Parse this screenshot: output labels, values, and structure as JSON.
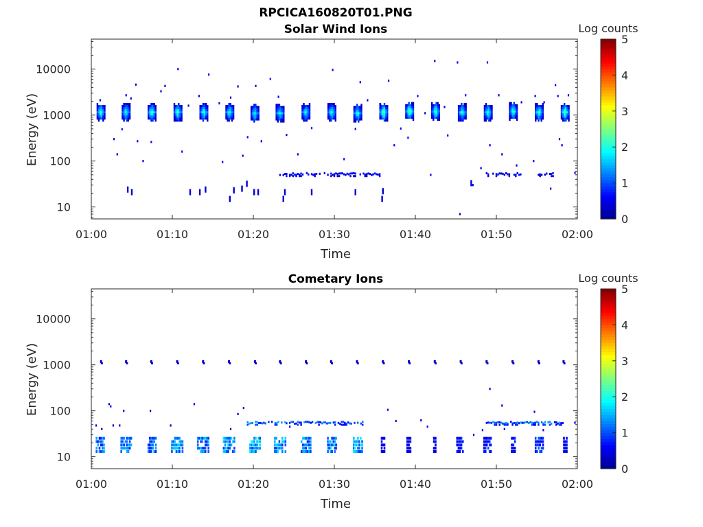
{
  "figure": {
    "title": "RPCICA160820T01.PNG"
  },
  "colormap": [
    "#00008f",
    "#0000ff",
    "#0080ff",
    "#00ffff",
    "#80ff80",
    "#ffff00",
    "#ff8000",
    "#ff0000",
    "#800000"
  ],
  "chart_data": [
    {
      "type": "heatmap",
      "title": "Solar Wind Ions",
      "xlabel": "Time",
      "ylabel": "Energy (eV)",
      "x_ticks": [
        "01:00",
        "01:10",
        "01:20",
        "01:30",
        "01:40",
        "01:50",
        "02:00"
      ],
      "xlim_minutes": [
        0,
        60
      ],
      "y_scale": "log",
      "y_ticks": [
        10,
        100,
        1000,
        10000
      ],
      "y_tick_labels": [
        "10",
        "100",
        "1000",
        "10000"
      ],
      "ylim": [
        5.5,
        45000
      ],
      "colorbar": {
        "label": "Log counts",
        "range": [
          0,
          5
        ],
        "ticks": [
          "0",
          "1",
          "2",
          "3",
          "4",
          "5"
        ]
      },
      "bursts": [
        {
          "t": 1.2,
          "e": 1150,
          "peak": 2.3
        },
        {
          "t": 4.3,
          "e": 1150,
          "peak": 2.1
        },
        {
          "t": 7.5,
          "e": 1150,
          "peak": 2.4
        },
        {
          "t": 10.7,
          "e": 1150,
          "peak": 2.3
        },
        {
          "t": 13.9,
          "e": 1150,
          "peak": 2.2
        },
        {
          "t": 17.1,
          "e": 1150,
          "peak": 2.2
        },
        {
          "t": 20.2,
          "e": 1100,
          "peak": 2.0
        },
        {
          "t": 23.3,
          "e": 1100,
          "peak": 2.1
        },
        {
          "t": 26.5,
          "e": 1150,
          "peak": 2.0
        },
        {
          "t": 29.7,
          "e": 1150,
          "peak": 2.1
        },
        {
          "t": 32.9,
          "e": 1100,
          "peak": 2.1
        },
        {
          "t": 36.1,
          "e": 1150,
          "peak": 2.6
        },
        {
          "t": 39.3,
          "e": 1200,
          "peak": 2.6
        },
        {
          "t": 42.5,
          "e": 1200,
          "peak": 2.4
        },
        {
          "t": 45.8,
          "e": 1150,
          "peak": 2.2
        },
        {
          "t": 49.0,
          "e": 1150,
          "peak": 2.2
        },
        {
          "t": 52.1,
          "e": 1200,
          "peak": 2.2
        },
        {
          "t": 55.3,
          "e": 1150,
          "peak": 2.3
        },
        {
          "t": 58.5,
          "e": 1150,
          "peak": 2.5
        }
      ],
      "band": {
        "e": 52,
        "segments": [
          [
            23.3,
            26.2
          ],
          [
            26.6,
            32.6
          ],
          [
            33.2,
            35.8
          ],
          [
            48.8,
            53.6
          ],
          [
            55.2,
            57.6
          ]
        ],
        "level": 0.6
      },
      "sparse_points": [
        [
          1.1,
          2100
        ],
        [
          2.8,
          300
        ],
        [
          3.2,
          140
        ],
        [
          3.8,
          490
        ],
        [
          4.3,
          2700
        ],
        [
          4.9,
          2300
        ],
        [
          5.5,
          4600
        ],
        [
          5.7,
          270
        ],
        [
          6.4,
          100
        ],
        [
          7.4,
          260
        ],
        [
          8.6,
          3300
        ],
        [
          9.1,
          4300
        ],
        [
          10.7,
          10000
        ],
        [
          11.2,
          160
        ],
        [
          12.0,
          1600
        ],
        [
          13.3,
          2600
        ],
        [
          14.5,
          7600
        ],
        [
          15.8,
          1800
        ],
        [
          16.2,
          95
        ],
        [
          17.2,
          2400
        ],
        [
          18.1,
          4200
        ],
        [
          18.7,
          130
        ],
        [
          19.3,
          330
        ],
        [
          20.3,
          4300
        ],
        [
          21.0,
          270
        ],
        [
          22.1,
          6100
        ],
        [
          23.1,
          2500
        ],
        [
          24.1,
          370
        ],
        [
          25.5,
          140
        ],
        [
          26.3,
          1500
        ],
        [
          27.2,
          520
        ],
        [
          29.8,
          9600
        ],
        [
          31.2,
          110
        ],
        [
          32.6,
          500
        ],
        [
          33.2,
          5200
        ],
        [
          34.1,
          2100
        ],
        [
          35.7,
          1700
        ],
        [
          36.7,
          5600
        ],
        [
          37.4,
          220
        ],
        [
          38.2,
          510
        ],
        [
          39.1,
          320
        ],
        [
          40.3,
          2600
        ],
        [
          41.2,
          1100
        ],
        [
          41.9,
          50
        ],
        [
          42.4,
          15000
        ],
        [
          43.6,
          1500
        ],
        [
          44.0,
          360
        ],
        [
          45.2,
          14000
        ],
        [
          45.5,
          7
        ],
        [
          46.2,
          2700
        ],
        [
          47.1,
          30
        ],
        [
          48.1,
          70
        ],
        [
          48.9,
          14000
        ],
        [
          49.2,
          220
        ],
        [
          50.3,
          2700
        ],
        [
          50.7,
          140
        ],
        [
          51.8,
          1700
        ],
        [
          52.5,
          80
        ],
        [
          53.1,
          1900
        ],
        [
          54.6,
          100
        ],
        [
          54.8,
          2600
        ],
        [
          55.9,
          1900
        ],
        [
          56.7,
          25
        ],
        [
          57.3,
          4500
        ],
        [
          57.6,
          2600
        ],
        [
          57.8,
          300
        ],
        [
          58.1,
          220
        ],
        [
          58.9,
          2700
        ],
        [
          59.7,
          55
        ]
      ],
      "low_ticks": [
        [
          4.5,
          24
        ],
        [
          5.0,
          21
        ],
        [
          12.2,
          21
        ],
        [
          13.4,
          21
        ],
        [
          14.1,
          24
        ],
        [
          17.1,
          15
        ],
        [
          17.6,
          23
        ],
        [
          18.6,
          25
        ],
        [
          19.2,
          32
        ],
        [
          20.1,
          21
        ],
        [
          20.6,
          21
        ],
        [
          23.7,
          15
        ],
        [
          23.9,
          21
        ],
        [
          27.2,
          21
        ],
        [
          32.6,
          21
        ],
        [
          35.9,
          15
        ],
        [
          36.0,
          22
        ],
        [
          46.9,
          33
        ]
      ]
    },
    {
      "type": "heatmap",
      "title": "Cometary Ions",
      "xlabel": "Time",
      "ylabel": "Energy (eV)",
      "x_ticks": [
        "01:00",
        "01:10",
        "01:20",
        "01:30",
        "01:40",
        "01:50",
        "02:00"
      ],
      "xlim_minutes": [
        0,
        60
      ],
      "y_scale": "log",
      "y_ticks": [
        10,
        100,
        1000,
        10000
      ],
      "y_tick_labels": [
        "10",
        "100",
        "1000",
        "10000"
      ],
      "ylim": [
        5.5,
        45000
      ],
      "colorbar": {
        "label": "Log counts",
        "range": [
          0,
          5
        ],
        "ticks": [
          "0",
          "1",
          "2",
          "3",
          "4",
          "5"
        ]
      },
      "thousand_marks": [
        1.2,
        4.3,
        7.4,
        10.6,
        13.8,
        17.0,
        20.2,
        23.3,
        26.5,
        29.6,
        32.8,
        36.0,
        39.2,
        42.4,
        45.6,
        48.8,
        52.0,
        55.2,
        58.3
      ],
      "low_blocks": [
        {
          "t": 1.2,
          "w": 1.1,
          "peak": 1.4
        },
        {
          "t": 4.4,
          "w": 1.4,
          "peak": 1.5
        },
        {
          "t": 7.6,
          "w": 1.1,
          "peak": 1.3
        },
        {
          "t": 10.7,
          "w": 1.5,
          "peak": 1.6
        },
        {
          "t": 13.9,
          "w": 1.5,
          "peak": 1.5
        },
        {
          "t": 17.1,
          "w": 1.5,
          "peak": 1.7
        },
        {
          "t": 20.3,
          "w": 1.4,
          "peak": 1.8
        },
        {
          "t": 23.4,
          "w": 1.5,
          "peak": 1.6
        },
        {
          "t": 26.6,
          "w": 1.3,
          "peak": 1.5
        },
        {
          "t": 29.8,
          "w": 1.2,
          "peak": 1.6
        },
        {
          "t": 33.0,
          "w": 1.2,
          "peak": 1.8
        },
        {
          "t": 36.1,
          "w": 0.5,
          "peak": 0.6
        },
        {
          "t": 39.3,
          "w": 0.6,
          "peak": 0.7
        },
        {
          "t": 42.5,
          "w": 0.4,
          "peak": 0.6
        },
        {
          "t": 45.6,
          "w": 0.9,
          "peak": 0.8
        },
        {
          "t": 49.0,
          "w": 1.0,
          "peak": 0.9
        },
        {
          "t": 52.2,
          "w": 0.6,
          "peak": 0.8
        },
        {
          "t": 55.4,
          "w": 1.1,
          "peak": 1.0
        },
        {
          "t": 58.6,
          "w": 0.5,
          "peak": 0.7
        }
      ],
      "band": {
        "e": 55,
        "segments": [
          [
            19.3,
            33.6
          ],
          [
            48.8,
            58.3
          ]
        ],
        "level": 1.2
      },
      "sparse_points": [
        [
          0.6,
          48
        ],
        [
          1.3,
          40
        ],
        [
          2.2,
          140
        ],
        [
          2.4,
          125
        ],
        [
          2.7,
          48
        ],
        [
          3.5,
          48
        ],
        [
          4.0,
          100
        ],
        [
          7.3,
          100
        ],
        [
          9.8,
          48
        ],
        [
          12.7,
          140
        ],
        [
          17.2,
          40
        ],
        [
          18.1,
          85
        ],
        [
          18.8,
          115
        ],
        [
          24.5,
          45
        ],
        [
          36.6,
          105
        ],
        [
          37.6,
          60
        ],
        [
          40.7,
          62
        ],
        [
          41.5,
          45
        ],
        [
          47.2,
          30
        ],
        [
          48.3,
          38
        ],
        [
          49.2,
          300
        ],
        [
          50.7,
          130
        ],
        [
          51.0,
          40
        ],
        [
          54.7,
          95
        ],
        [
          55.8,
          38
        ],
        [
          59.7,
          55
        ]
      ]
    }
  ]
}
